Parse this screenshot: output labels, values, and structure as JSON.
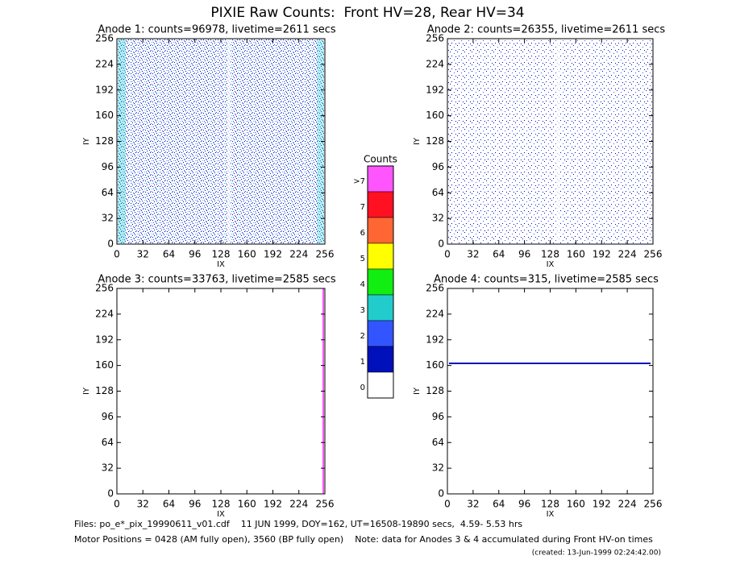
{
  "title": "PIXIE Raw Counts:  Front HV=28, Rear HV=34",
  "chart_data": [
    {
      "type": "heatmap",
      "title": "Anode 1: counts=96978, livetime=2611 secs",
      "xlabel": "IX",
      "ylabel": "IY",
      "xlim": [
        0,
        256
      ],
      "ylim": [
        0,
        256
      ],
      "xticks": [
        0,
        32,
        64,
        96,
        128,
        160,
        192,
        224,
        256
      ],
      "yticks": [
        0,
        32,
        64,
        96,
        128,
        160,
        192,
        224,
        256
      ]
    },
    {
      "type": "heatmap",
      "title": "Anode 2: counts=26355, livetime=2611 secs",
      "xlabel": "IX",
      "ylabel": "IY",
      "xlim": [
        0,
        256
      ],
      "ylim": [
        0,
        256
      ],
      "xticks": [
        0,
        32,
        64,
        96,
        128,
        160,
        192,
        224,
        256
      ],
      "yticks": [
        0,
        32,
        64,
        96,
        128,
        160,
        192,
        224,
        256
      ]
    },
    {
      "type": "heatmap",
      "title": "Anode 3: counts=33763, livetime=2585 secs",
      "xlabel": "IX",
      "ylabel": "IY",
      "xlim": [
        0,
        256
      ],
      "ylim": [
        0,
        256
      ],
      "xticks": [
        0,
        32,
        64,
        96,
        128,
        160,
        192,
        224,
        256
      ],
      "yticks": [
        0,
        32,
        64,
        96,
        128,
        160,
        192,
        224,
        256
      ]
    },
    {
      "type": "heatmap",
      "title": "Anode 4: counts=315, livetime=2585 secs",
      "xlabel": "IX",
      "ylabel": "IY",
      "xlim": [
        0,
        256
      ],
      "ylim": [
        0,
        256
      ],
      "xticks": [
        0,
        32,
        64,
        96,
        128,
        160,
        192,
        224,
        256
      ],
      "yticks": [
        0,
        32,
        64,
        96,
        128,
        160,
        192,
        224,
        256
      ]
    }
  ],
  "colorbar": {
    "title": "Counts",
    "labels": [
      ">7",
      7,
      6,
      5,
      4,
      3,
      2,
      1,
      0
    ],
    "colors": [
      "#ff55ff",
      "#ff1122",
      "#ff6633",
      "#ffff00",
      "#11ee11",
      "#22cccc",
      "#3355ff",
      "#0010bb",
      "#ffffff"
    ]
  },
  "footer": {
    "files": "Files: po_e*_pix_19990611_v01.cdf    11 JUN 1999, DOY=162, UT=16508-19890 secs,  4.59- 5.53 hrs",
    "motor": "Motor Positions = 0428 (AM fully open), 3560 (BP fully open)    Note: data for Anodes 3 & 4 accumulated during Front HV-on times",
    "created": "(created: 13-Jun-1999 02:24:42.00)"
  }
}
